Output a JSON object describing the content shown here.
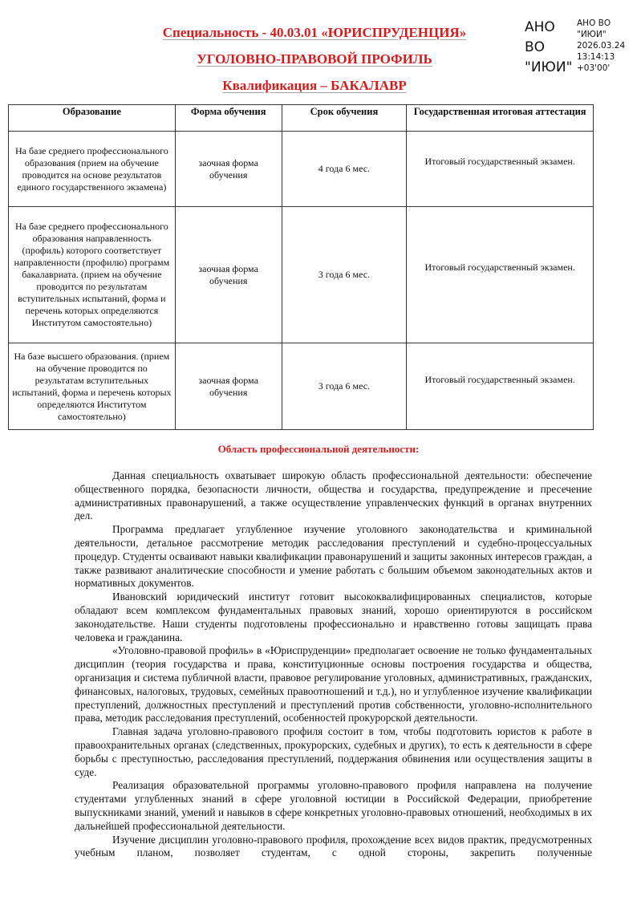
{
  "header": {
    "specialty": "Специальность - 40.03.01  «ЮРИСПРУДЕНЦИЯ»",
    "profile": "УГОЛОВНО-ПРАВОВОЙ ПРОФИЛЬ",
    "qualification": "Квалификация – БАКАЛАВР"
  },
  "stamp": {
    "big": [
      "АНО",
      "ВО",
      "\"ИЮИ\""
    ],
    "small": [
      "АНО ВО",
      "\"ИЮИ\"",
      "2026.03.24",
      "13:14:13",
      "+03'00'"
    ]
  },
  "table": {
    "headers": [
      "Образование",
      "Форма обучения",
      "Срок обучения",
      "Государственная итоговая аттестация"
    ],
    "rows": [
      [
        "На базе среднего профессионального образования (прием на обучение проводится на основе результатов единого государственного экзамена)",
        "заочная форма обучения",
        "4 года 6 мес.",
        "Итоговый государственный экзамен."
      ],
      [
        "На базе среднего профессионального образования направленность (профиль) которого соответствует направленности (профилю) программ бакалавриата. (прием на обучение проводится по результатам вступительных испытаний, форма и перечень которых определяются Институтом самостоятельно)",
        "заочная форма обучения",
        "3 года 6 мес.",
        "Итоговый государственный экзамен."
      ],
      [
        "На базе высшего образования. (прием на обучение проводится по результатам вступительных испытаний, форма и перечень которых определяются Институтом самостоятельно)",
        "заочная форма обучения",
        "3 года 6 мес.",
        "Итоговый государственный экзамен."
      ]
    ]
  },
  "section_title": "Область профессиональной деятельности:",
  "paragraphs": [
    "Данная специальность охватывает широкую область профессиональной деятельности: обеспечение общественного порядка, безопасности личности, общества и государства, предупреждение и пресечение административных правонарушений, а также осуществление управленческих функций в органах внутренних дел.",
    "Программа предлагает углубленное изучение уголовного законодательства и криминальной деятельности, детальное рассмотрение методик расследования преступлений и судебно-процессуальных процедур. Студенты осваивают навыки квалификации правонарушений и защиты законных интересов граждан, а также развивают аналитические способности и умение работать с большим объемом законодательных актов и нормативных документов.",
    "Ивановский юридический институт готовит высококвалифицированных специалистов, которые обладают всем комплексом фундаментальных правовых знаний, хорошо ориентируются в российском законодательстве. Наши студенты подготовлены профессионально и нравственно готовы защищать права человека и гражданина.",
    "«Уголовно-правовой профиль» в «Юриспруденции» предполагает освоение не только фундаментальных дисциплин (теория государства и права, конституционные основы построения государства и общества, организация и система публичной власти, правовое регулирование уголовных, административных, гражданских, финансовых, налоговых, трудовых, семейных правоотношений и т.д.), но и углубленное изучение квалификации преступлений, должностных преступлений и преступлений против собственности, уголовно-исполнительного права, методик расследования преступлений, особенностей прокурорской деятельности.",
    "Главная задача уголовно-правового профиля состоит в том, чтобы подготовить юристов к работе в правоохранительных органах (следственных, прокурорских, судебных и других), то есть к деятельности в сфере борьбы с преступностью, расследования преступлений, поддержания обвинения или осуществления защиты в суде.",
    "Реализация образовательной программы уголовно-правового профиля направлена на получение студентами углубленных знаний в сфере уголовной юстиции в Российской Федерации, приобретение выпускниками знаний, умений и навыков в сфере конкретных уголовно-правовых отношений, необходимых в их дальнейшей профессиональной деятельности.",
    "Изучение дисциплин уголовно-правового профиля, прохождение всех видов практик, предусмотренных учебным планом, позволяет студентам, с одной стороны, закрепить полученные"
  ]
}
